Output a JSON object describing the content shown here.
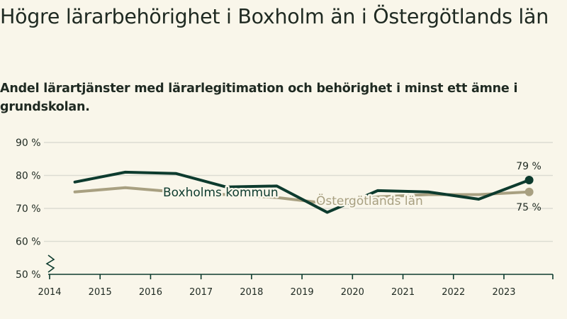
{
  "title": "Högre lärarbehörighet i Boxholm än i Östergötlands län",
  "subtitle": "Andel lärartjänster med lärarlegitimation och behörighet i minst ett ämne i grundskolan.",
  "chart_data": {
    "type": "line",
    "ylim": [
      50,
      90
    ],
    "yticks": [
      50,
      60,
      70,
      80,
      90
    ],
    "ytick_labels": [
      "50 %",
      "60 %",
      "70 %",
      "80 %",
      "90 %"
    ],
    "xticks": [
      "2014",
      "2015",
      "2016",
      "2017",
      "2018",
      "2019",
      "2020",
      "2021",
      "2022",
      "2023"
    ],
    "x": [
      2014.5,
      2015.5,
      2016.5,
      2017.5,
      2018.5,
      2019.5,
      2020.5,
      2021.5,
      2022.5,
      2023.5
    ],
    "series": [
      {
        "name": "Östergötlands län",
        "color": "#a8a081",
        "values": [
          75,
          76.3,
          75,
          74.2,
          73.3,
          71.5,
          73.5,
          74.2,
          74.2,
          75
        ],
        "end_label": "75 %"
      },
      {
        "name": "Boxholms kommun",
        "color": "#0d3b2e",
        "values": [
          78,
          81,
          80.6,
          76.5,
          76.8,
          68.8,
          75.4,
          75,
          72.8,
          78.6
        ],
        "end_label": "79 %"
      }
    ]
  }
}
